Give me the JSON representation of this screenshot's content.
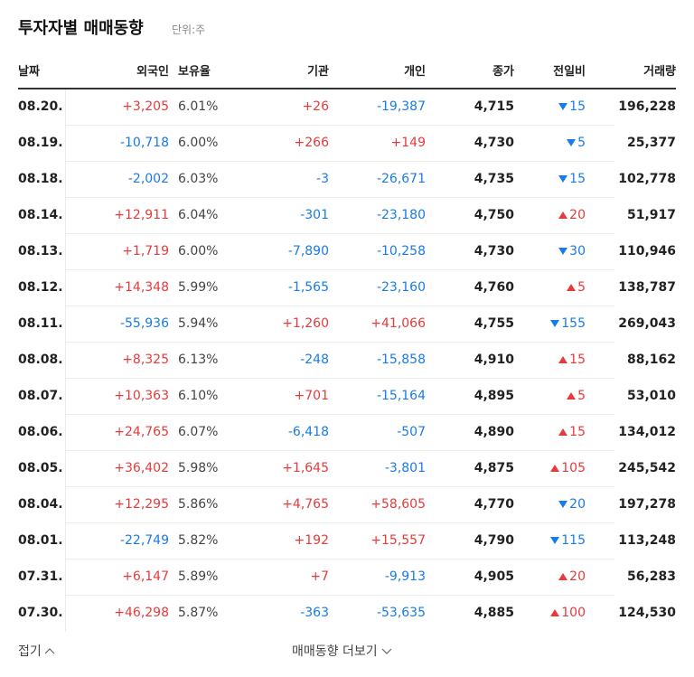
{
  "header": {
    "title": "투자자별 매매동향",
    "unit": "단위:주"
  },
  "table": {
    "columns": [
      "날짜",
      "외국인",
      "보유율",
      "기관",
      "개인",
      "종가",
      "전일비",
      "거래량"
    ],
    "rows": [
      [
        "08.20.",
        "+3,205",
        "6.01%",
        "+26",
        "-19,387",
        "4,715",
        "15",
        "196,228"
      ],
      [
        "08.19.",
        "-10,718",
        "6.00%",
        "+266",
        "+149",
        "4,730",
        "5",
        "25,377"
      ],
      [
        "08.18.",
        "-2,002",
        "6.03%",
        "-3",
        "-26,671",
        "4,735",
        "15",
        "102,778"
      ],
      [
        "08.14.",
        "+12,911",
        "6.04%",
        "-301",
        "-23,180",
        "4,750",
        "20",
        "51,917"
      ],
      [
        "08.13.",
        "+1,719",
        "6.00%",
        "-7,890",
        "-10,258",
        "4,730",
        "30",
        "110,946"
      ],
      [
        "08.12.",
        "+14,348",
        "5.99%",
        "-1,565",
        "-23,160",
        "4,760",
        "5",
        "138,787"
      ],
      [
        "08.11.",
        "-55,936",
        "5.94%",
        "+1,260",
        "+41,066",
        "4,755",
        "155",
        "269,043"
      ],
      [
        "08.08.",
        "+8,325",
        "6.13%",
        "-248",
        "-15,858",
        "4,910",
        "15",
        "88,162"
      ],
      [
        "08.07.",
        "+10,363",
        "6.10%",
        "+701",
        "-15,164",
        "4,895",
        "5",
        "53,010"
      ],
      [
        "08.06.",
        "+24,765",
        "6.07%",
        "-6,418",
        "-507",
        "4,890",
        "15",
        "134,012"
      ],
      [
        "08.05.",
        "+36,402",
        "5.98%",
        "+1,645",
        "-3,801",
        "4,875",
        "105",
        "245,542"
      ],
      [
        "08.04.",
        "+12,295",
        "5.86%",
        "+4,765",
        "+58,605",
        "4,770",
        "20",
        "197,278"
      ],
      [
        "08.01.",
        "-22,749",
        "5.82%",
        "+192",
        "+15,557",
        "4,790",
        "115",
        "113,248"
      ],
      [
        "07.31.",
        "+6,147",
        "5.89%",
        "+7",
        "-9,913",
        "4,905",
        "20",
        "56,283"
      ],
      [
        "07.30.",
        "+46,298",
        "5.87%",
        "-363",
        "-53,635",
        "4,885",
        "100",
        "124,530"
      ]
    ],
    "change_directions": [
      "down",
      "down",
      "down",
      "up",
      "down",
      "up",
      "down",
      "up",
      "up",
      "up",
      "up",
      "down",
      "down",
      "up",
      "up"
    ]
  },
  "footer": {
    "collapse": "접기",
    "more": "매매동향 더보기"
  }
}
